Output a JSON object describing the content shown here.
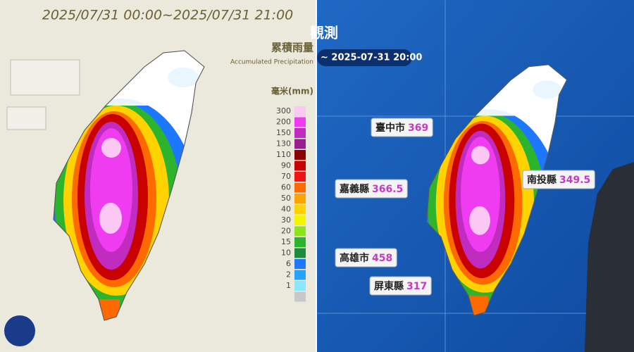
{
  "left_map": {
    "title": "2025/07/31 00:00~2025/07/31 21:00",
    "legend_title": "累積雨量",
    "legend_subtitle": "Accumulated Precipitation",
    "unit": "毫米(mm)",
    "legend": [
      {
        "value": 300,
        "color": "#fbc8f4"
      },
      {
        "value": 200,
        "color": "#f03cf0"
      },
      {
        "value": 150,
        "color": "#c02cc0"
      },
      {
        "value": 130,
        "color": "#991f8f"
      },
      {
        "value": 110,
        "color": "#8c0000"
      },
      {
        "value": 90,
        "color": "#c80000"
      },
      {
        "value": 70,
        "color": "#f01414"
      },
      {
        "value": 60,
        "color": "#ff6a00"
      },
      {
        "value": 50,
        "color": "#ffa300"
      },
      {
        "value": 40,
        "color": "#ffd200"
      },
      {
        "value": 30,
        "color": "#f5f500"
      },
      {
        "value": 20,
        "color": "#8ce41e"
      },
      {
        "value": 15,
        "color": "#2db42d"
      },
      {
        "value": 10,
        "color": "#1e8c3c"
      },
      {
        "value": 6,
        "color": "#1e78ff"
      },
      {
        "value": 2,
        "color": "#23a5ff"
      },
      {
        "value": 1,
        "color": "#8ce6ff"
      }
    ]
  },
  "right_screen": {
    "heading": "觀測",
    "time": "~ 2025-07-31 20:00",
    "labels": [
      {
        "name": "臺中市",
        "value": 369
      },
      {
        "name": "嘉義縣",
        "value": 366.5
      },
      {
        "name": "南投縣",
        "value": 349.5
      },
      {
        "name": "高雄市",
        "value": 458
      },
      {
        "name": "屏東縣",
        "value": 317
      }
    ]
  }
}
